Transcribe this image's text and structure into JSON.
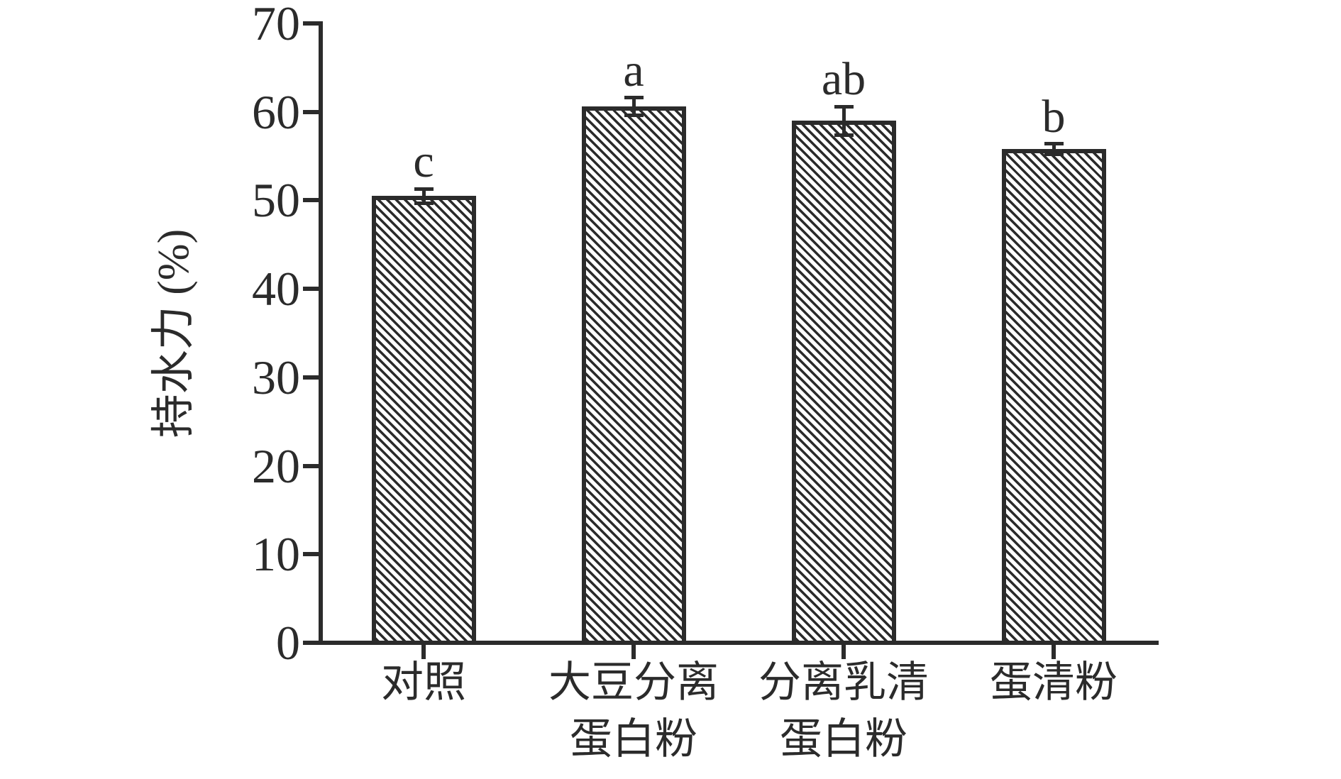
{
  "figure": {
    "background": "#ffffff",
    "ink_color": "#2b2b2b",
    "bar_fill_pattern": "diagonal-hatch-backslash"
  },
  "chart_data": {
    "type": "bar",
    "title": "",
    "xlabel": "",
    "ylabel": "持水力 (%)",
    "ylim": [
      0,
      70
    ],
    "yticks": [
      0,
      10,
      20,
      30,
      40,
      50,
      60,
      70
    ],
    "grid": false,
    "legend": "none",
    "categories": [
      "对照",
      "大豆分离\n蛋白粉",
      "分离乳清\n蛋白粉",
      "蛋清粉"
    ],
    "values": [
      50.5,
      60.6,
      59.0,
      55.8
    ],
    "errors": [
      0.8,
      1.0,
      1.6,
      0.6
    ],
    "sig_letters": [
      "c",
      "a",
      "ab",
      "b"
    ]
  }
}
